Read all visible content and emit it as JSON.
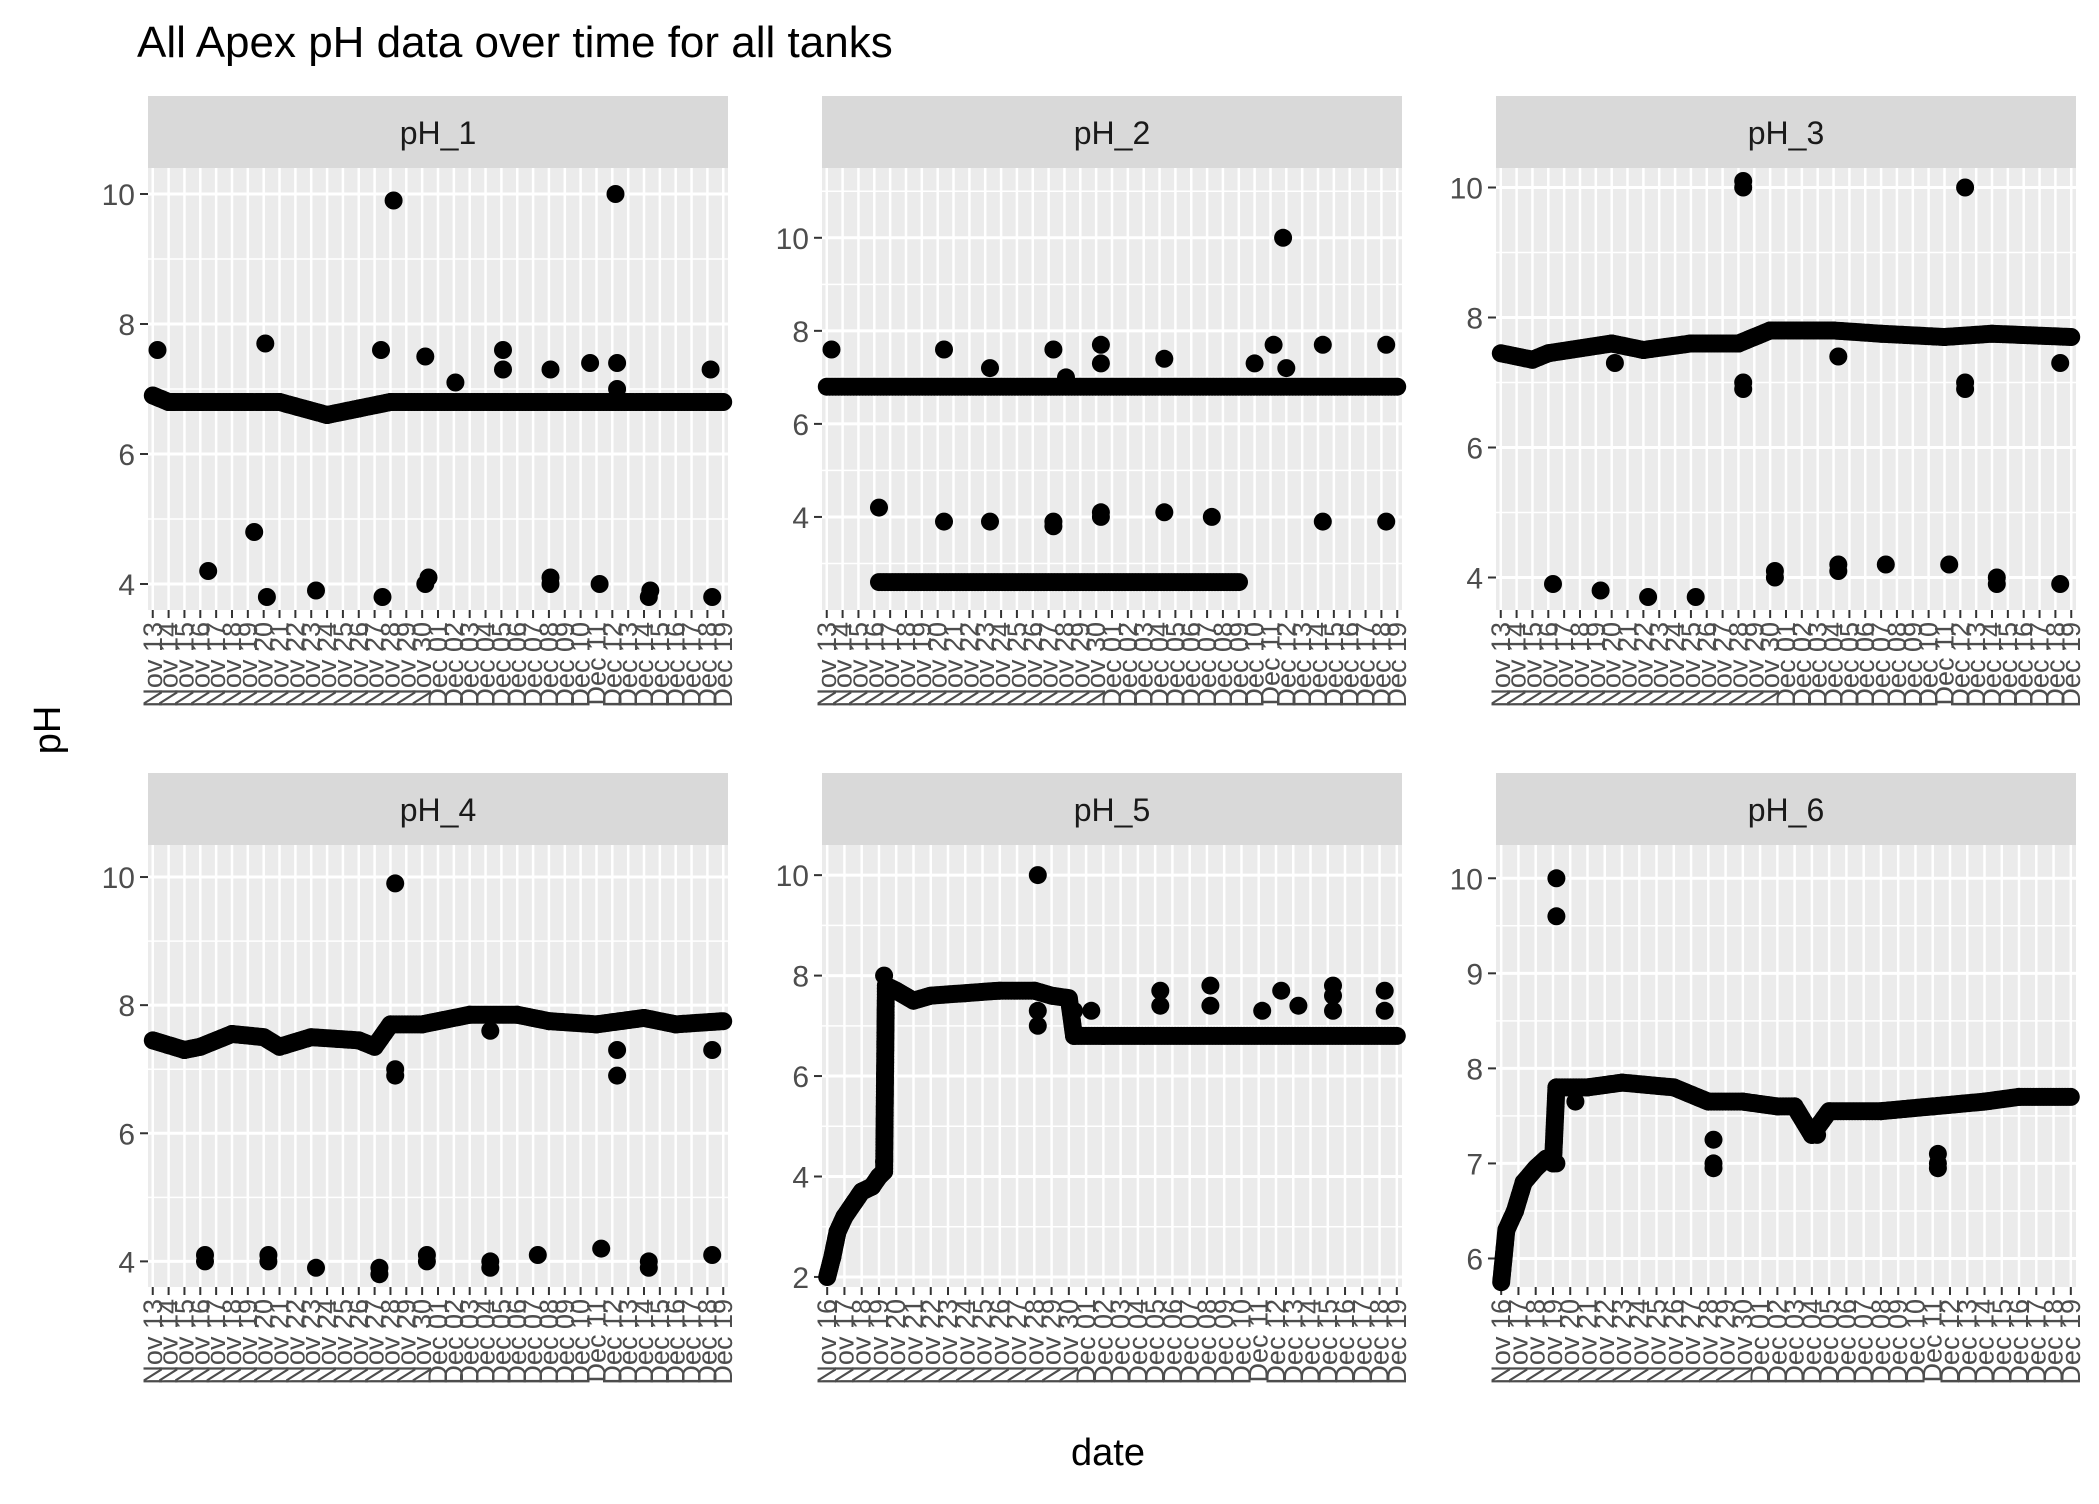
{
  "chart_data": {
    "type": "scatter",
    "title": "All Apex pH data over time for all tanks",
    "xlabel": "date",
    "ylabel": "pH",
    "grid": true,
    "colors": {
      "panel_bg": "#ebebeb",
      "strip_bg": "#d9d9d9",
      "grid": "#ffffff",
      "point": "#000000",
      "text": "#4d4d4d",
      "title": "#000000"
    },
    "panels": [
      {
        "name": "pH_1",
        "x_range": [
          "Nov 13",
          "Dec 19"
        ],
        "ylim": [
          3.6,
          10.4
        ],
        "y_ticks": [
          4,
          6,
          8,
          10
        ],
        "x_tick_labels": [
          "Nov 13",
          "Nov 14",
          "Nov 15",
          "Nov 16",
          "Nov 17",
          "Nov 18",
          "Nov 19",
          "Nov 20",
          "Nov 21",
          "Nov 22",
          "Nov 23",
          "Nov 24",
          "Nov 25",
          "Nov 26",
          "Nov 27",
          "Nov 28",
          "Nov 29",
          "Nov 30",
          "Dec 01",
          "Dec 02",
          "Dec 03",
          "Dec 04",
          "Dec 05",
          "Dec 06",
          "Dec 07",
          "Dec 08",
          "Dec 09",
          "Dec 10",
          "Dec 11",
          "Dec 12",
          "Dec 13",
          "Dec 14",
          "Dec 15",
          "Dec 16",
          "Dec 17",
          "Dec 18",
          "Dec 19"
        ],
        "baseline": [
          [
            0,
            6.9
          ],
          [
            1,
            6.8
          ],
          [
            3,
            6.8
          ],
          [
            8,
            6.8
          ],
          [
            11,
            6.6
          ],
          [
            13,
            6.7
          ],
          [
            15,
            6.8
          ],
          [
            36,
            6.8
          ]
        ],
        "points": [
          [
            0.3,
            7.6
          ],
          [
            1.3,
            6.8
          ],
          [
            3.5,
            4.2
          ],
          [
            6.4,
            4.8
          ],
          [
            7.2,
            3.8
          ],
          [
            7.1,
            7.7
          ],
          [
            10.3,
            3.9
          ],
          [
            14.5,
            3.8
          ],
          [
            14.4,
            7.6
          ],
          [
            15.2,
            9.9
          ],
          [
            17.2,
            7.5
          ],
          [
            17.2,
            4.0
          ],
          [
            17.4,
            4.1
          ],
          [
            19.1,
            7.1
          ],
          [
            22.1,
            7.6
          ],
          [
            22.1,
            7.3
          ],
          [
            25.1,
            4.1
          ],
          [
            25.1,
            4.0
          ],
          [
            25.1,
            7.3
          ],
          [
            27.6,
            7.4
          ],
          [
            28.2,
            4.0
          ],
          [
            29.2,
            10.0
          ],
          [
            29.3,
            7.4
          ],
          [
            29.3,
            7.0
          ],
          [
            31.3,
            3.8
          ],
          [
            31.4,
            3.9
          ],
          [
            35.3,
            3.8
          ],
          [
            35.2,
            7.3
          ]
        ]
      },
      {
        "name": "pH_2",
        "x_range": [
          "Nov 13",
          "Dec 19"
        ],
        "ylim": [
          2.0,
          11.5
        ],
        "y_ticks": [
          4,
          6,
          8,
          10
        ],
        "x_tick_labels": [
          "Nov 13",
          "Nov 14",
          "Nov 15",
          "Nov 16",
          "Nov 17",
          "Nov 18",
          "Nov 19",
          "Nov 20",
          "Nov 21",
          "Nov 22",
          "Nov 23",
          "Nov 24",
          "Nov 25",
          "Nov 26",
          "Nov 27",
          "Nov 28",
          "Nov 29",
          "Nov 30",
          "Dec 01",
          "Dec 02",
          "Dec 03",
          "Dec 04",
          "Dec 05",
          "Dec 06",
          "Dec 07",
          "Dec 08",
          "Dec 09",
          "Dec 10",
          "Dec 11",
          "Dec 12",
          "Dec 13",
          "Dec 14",
          "Dec 15",
          "Dec 16",
          "Dec 17",
          "Dec 18",
          "Dec 19"
        ],
        "baseline": [
          [
            0,
            6.8
          ],
          [
            36,
            6.8
          ]
        ],
        "low_band": [
          3.3,
          26.1,
          2.6
        ],
        "points": [
          [
            0.3,
            7.6
          ],
          [
            3.3,
            4.2
          ],
          [
            7.4,
            3.9
          ],
          [
            7.4,
            7.6
          ],
          [
            10.3,
            3.9
          ],
          [
            10.3,
            7.2
          ],
          [
            14.3,
            3.9
          ],
          [
            14.3,
            3.8
          ],
          [
            14.3,
            7.6
          ],
          [
            15.1,
            7.0
          ],
          [
            17.3,
            4.0
          ],
          [
            17.3,
            4.1
          ],
          [
            17.3,
            7.7
          ],
          [
            17.3,
            7.3
          ],
          [
            21.3,
            4.1
          ],
          [
            21.3,
            7.4
          ],
          [
            24.3,
            4.0
          ],
          [
            27.0,
            7.3
          ],
          [
            28.2,
            7.7
          ],
          [
            28.8,
            10.0
          ],
          [
            29.0,
            7.2
          ],
          [
            31.3,
            3.9
          ],
          [
            31.3,
            7.7
          ],
          [
            35.3,
            3.9
          ],
          [
            35.3,
            7.7
          ]
        ]
      },
      {
        "name": "pH_3",
        "x_range": [
          "Nov 13",
          "Dec 19"
        ],
        "ylim": [
          3.5,
          10.3
        ],
        "y_ticks": [
          4,
          6,
          8,
          10
        ],
        "x_tick_labels": [
          "Nov 13",
          "Nov 14",
          "Nov 15",
          "Nov 16",
          "Nov 17",
          "Nov 18",
          "Nov 19",
          "Nov 20",
          "Nov 21",
          "Nov 22",
          "Nov 23",
          "Nov 24",
          "Nov 25",
          "Nov 26",
          "Nov 27",
          "Nov 28",
          "Nov 29",
          "Nov 30",
          "Dec 01",
          "Dec 02",
          "Dec 03",
          "Dec 04",
          "Dec 05",
          "Dec 06",
          "Dec 07",
          "Dec 08",
          "Dec 09",
          "Dec 10",
          "Dec 11",
          "Dec 12",
          "Dec 13",
          "Dec 14",
          "Dec 15",
          "Dec 16",
          "Dec 17",
          "Dec 18",
          "Dec 19"
        ],
        "baseline": [
          [
            0,
            7.45
          ],
          [
            2,
            7.35
          ],
          [
            3,
            7.45
          ],
          [
            7,
            7.6
          ],
          [
            9,
            7.5
          ],
          [
            12,
            7.6
          ],
          [
            15,
            7.6
          ],
          [
            17,
            7.8
          ],
          [
            21,
            7.8
          ],
          [
            24,
            7.75
          ],
          [
            28,
            7.7
          ],
          [
            31,
            7.75
          ],
          [
            36,
            7.7
          ]
        ],
        "points": [
          [
            3.3,
            3.9
          ],
          [
            6.3,
            3.8
          ],
          [
            7.2,
            7.3
          ],
          [
            9.3,
            3.7
          ],
          [
            12.3,
            3.7
          ],
          [
            15.3,
            10.1
          ],
          [
            15.3,
            10.0
          ],
          [
            15.3,
            7.0
          ],
          [
            15.3,
            6.9
          ],
          [
            17.3,
            4.1
          ],
          [
            17.3,
            4.0
          ],
          [
            21.3,
            4.2
          ],
          [
            21.3,
            4.1
          ],
          [
            21.3,
            7.4
          ],
          [
            24.3,
            4.2
          ],
          [
            28.3,
            4.2
          ],
          [
            29.3,
            10.0
          ],
          [
            29.3,
            7.0
          ],
          [
            29.3,
            6.9
          ],
          [
            31.3,
            4.0
          ],
          [
            31.3,
            3.9
          ],
          [
            35.3,
            3.9
          ],
          [
            35.3,
            7.3
          ]
        ]
      },
      {
        "name": "pH_4",
        "x_range": [
          "Nov 13",
          "Dec 19"
        ],
        "ylim": [
          3.6,
          10.5
        ],
        "y_ticks": [
          4,
          6,
          8,
          10
        ],
        "x_tick_labels": [
          "Nov 13",
          "Nov 14",
          "Nov 15",
          "Nov 16",
          "Nov 17",
          "Nov 18",
          "Nov 19",
          "Nov 20",
          "Nov 21",
          "Nov 22",
          "Nov 23",
          "Nov 24",
          "Nov 25",
          "Nov 26",
          "Nov 27",
          "Nov 28",
          "Nov 29",
          "Nov 30",
          "Dec 01",
          "Dec 02",
          "Dec 03",
          "Dec 04",
          "Dec 05",
          "Dec 06",
          "Dec 07",
          "Dec 08",
          "Dec 09",
          "Dec 10",
          "Dec 11",
          "Dec 12",
          "Dec 13",
          "Dec 14",
          "Dec 15",
          "Dec 16",
          "Dec 17",
          "Dec 18",
          "Dec 19"
        ],
        "baseline": [
          [
            0,
            7.45
          ],
          [
            2,
            7.3
          ],
          [
            3,
            7.35
          ],
          [
            5,
            7.55
          ],
          [
            7,
            7.5
          ],
          [
            8,
            7.35
          ],
          [
            10,
            7.5
          ],
          [
            13,
            7.45
          ],
          [
            14,
            7.35
          ],
          [
            15,
            7.7
          ],
          [
            17,
            7.7
          ],
          [
            20,
            7.85
          ],
          [
            23,
            7.85
          ],
          [
            25,
            7.75
          ],
          [
            28,
            7.7
          ],
          [
            31,
            7.8
          ],
          [
            33,
            7.7
          ],
          [
            36,
            7.75
          ]
        ],
        "points": [
          [
            3.3,
            4.1
          ],
          [
            3.3,
            4.0
          ],
          [
            7.3,
            4.0
          ],
          [
            7.3,
            4.1
          ],
          [
            10.3,
            3.9
          ],
          [
            14.3,
            3.9
          ],
          [
            14.3,
            3.8
          ],
          [
            15.3,
            9.9
          ],
          [
            15.3,
            7.0
          ],
          [
            15.3,
            6.9
          ],
          [
            17.3,
            4.1
          ],
          [
            17.3,
            4.0
          ],
          [
            21.3,
            4.0
          ],
          [
            21.3,
            3.9
          ],
          [
            21.3,
            7.6
          ],
          [
            24.3,
            4.1
          ],
          [
            28.3,
            4.2
          ],
          [
            29.3,
            7.3
          ],
          [
            29.3,
            6.9
          ],
          [
            31.3,
            4.0
          ],
          [
            31.3,
            3.9
          ],
          [
            35.3,
            4.1
          ],
          [
            35.3,
            7.3
          ]
        ]
      },
      {
        "name": "pH_5",
        "x_range": [
          "Nov 16",
          "Dec 19"
        ],
        "ylim": [
          1.8,
          10.6
        ],
        "y_ticks": [
          2,
          4,
          6,
          8,
          10
        ],
        "x_tick_labels": [
          "Nov 16",
          "Nov 17",
          "Nov 18",
          "Nov 19",
          "Nov 20",
          "Nov 21",
          "Nov 22",
          "Nov 23",
          "Nov 24",
          "Nov 25",
          "Nov 26",
          "Nov 27",
          "Nov 28",
          "Nov 29",
          "Nov 30",
          "Dec 01",
          "Dec 02",
          "Dec 03",
          "Dec 04",
          "Dec 05",
          "Dec 06",
          "Dec 07",
          "Dec 08",
          "Dec 09",
          "Dec 10",
          "Dec 11",
          "Dec 12",
          "Dec 13",
          "Dec 14",
          "Dec 15",
          "Dec 16",
          "Dec 17",
          "Dec 18",
          "Dec 19"
        ],
        "baseline": [
          [
            0,
            2.0
          ],
          [
            0.3,
            2.4
          ],
          [
            0.6,
            2.9
          ],
          [
            1,
            3.2
          ],
          [
            1.6,
            3.5
          ],
          [
            2,
            3.7
          ],
          [
            2.6,
            3.8
          ],
          [
            3,
            4.0
          ],
          [
            3.3,
            4.1
          ],
          [
            3.4,
            7.8
          ],
          [
            4,
            7.7
          ],
          [
            5,
            7.5
          ],
          [
            6,
            7.6
          ],
          [
            8,
            7.65
          ],
          [
            10,
            7.7
          ],
          [
            12,
            7.7
          ],
          [
            13,
            7.6
          ],
          [
            14,
            7.55
          ],
          [
            14.3,
            6.8
          ],
          [
            16,
            6.8
          ],
          [
            33,
            6.8
          ]
        ],
        "points": [
          [
            3.3,
            8.0
          ],
          [
            3.3,
            4.3
          ],
          [
            12.2,
            10.0
          ],
          [
            12.2,
            7.3
          ],
          [
            12.2,
            7.0
          ],
          [
            14.3,
            7.3
          ],
          [
            15.3,
            7.3
          ],
          [
            19.3,
            7.7
          ],
          [
            19.3,
            7.4
          ],
          [
            22.2,
            7.8
          ],
          [
            22.2,
            7.4
          ],
          [
            25.2,
            7.3
          ],
          [
            26.3,
            7.7
          ],
          [
            27.3,
            7.4
          ],
          [
            29.3,
            7.8
          ],
          [
            29.3,
            7.6
          ],
          [
            29.3,
            7.3
          ],
          [
            32.3,
            7.7
          ],
          [
            32.3,
            7.3
          ]
        ]
      },
      {
        "name": "pH_6",
        "x_range": [
          "Nov 16",
          "Dec 19"
        ],
        "ylim": [
          5.7,
          10.35
        ],
        "y_ticks": [
          6,
          7,
          8,
          9,
          10
        ],
        "x_tick_labels": [
          "Nov 16",
          "Nov 17",
          "Nov 18",
          "Nov 19",
          "Nov 20",
          "Nov 21",
          "Nov 22",
          "Nov 23",
          "Nov 24",
          "Nov 25",
          "Nov 26",
          "Nov 27",
          "Nov 28",
          "Nov 29",
          "Nov 30",
          "Dec 01",
          "Dec 02",
          "Dec 03",
          "Dec 04",
          "Dec 05",
          "Dec 06",
          "Dec 07",
          "Dec 08",
          "Dec 09",
          "Dec 10",
          "Dec 11",
          "Dec 12",
          "Dec 13",
          "Dec 14",
          "Dec 15",
          "Dec 16",
          "Dec 17",
          "Dec 18",
          "Dec 19"
        ],
        "baseline": [
          [
            0,
            5.75
          ],
          [
            0.3,
            6.3
          ],
          [
            0.8,
            6.5
          ],
          [
            1.3,
            6.8
          ],
          [
            2,
            6.95
          ],
          [
            2.6,
            7.05
          ],
          [
            3,
            7.0
          ],
          [
            3.2,
            7.8
          ],
          [
            5,
            7.8
          ],
          [
            7,
            7.85
          ],
          [
            10,
            7.8
          ],
          [
            12,
            7.65
          ],
          [
            14,
            7.65
          ],
          [
            16,
            7.6
          ],
          [
            17,
            7.6
          ],
          [
            18,
            7.3
          ],
          [
            19,
            7.55
          ],
          [
            22,
            7.55
          ],
          [
            25,
            7.6
          ],
          [
            28,
            7.65
          ],
          [
            30,
            7.7
          ],
          [
            33,
            7.7
          ]
        ],
        "points": [
          [
            3.2,
            10.0
          ],
          [
            3.2,
            9.6
          ],
          [
            3.2,
            7.0
          ],
          [
            4.3,
            7.65
          ],
          [
            12.3,
            7.25
          ],
          [
            12.3,
            7.0
          ],
          [
            12.3,
            6.95
          ],
          [
            18.3,
            7.3
          ],
          [
            25.3,
            7.1
          ],
          [
            25.3,
            7.0
          ],
          [
            25.3,
            6.95
          ]
        ]
      }
    ]
  }
}
